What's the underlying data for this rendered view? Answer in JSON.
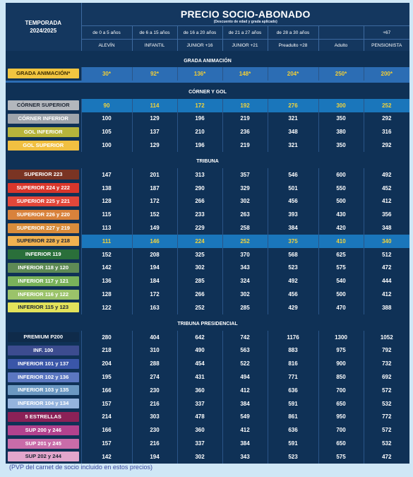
{
  "header": {
    "season_line1": "TEMPORADA",
    "season_line2": "2024/2025",
    "title": "PRECIO SOCIO-ABONADO",
    "subtitle": "(Descuento de edad y grada aplicado)",
    "age_ranges": [
      "de 0 a 5 años",
      "de 6 a 15 años",
      "de 16 a 20 años",
      "de 21 a 27 años",
      "de 28 a 30 años",
      "",
      "+67"
    ],
    "categories": [
      "ALEVÍN",
      "INFANTIL",
      "JUNIOR +16",
      "JUNIOR +21",
      "Preadulto +28",
      "Adulto",
      "PENSIONISTA"
    ]
  },
  "sections": {
    "animacion": "GRADA ANIMACIÓN",
    "corner": "CÓRNER Y GOL",
    "tribuna": "TRIBUNA",
    "presidencial": "TRIBUNA PRESIDENCIAL"
  },
  "rows": {
    "animacion": [
      {
        "label": "GRADA ANIMACIÓN*",
        "color": "#f1c540",
        "text": "#3a2a00",
        "values": [
          "30*",
          "92*",
          "136*",
          "148*",
          "204*",
          "250*",
          "200*"
        ]
      }
    ],
    "corner": [
      {
        "label": "CÓRNER SUPERIOR",
        "color": "#b3b7bd",
        "text": "#1c2533",
        "values": [
          "90",
          "114",
          "172",
          "192",
          "276",
          "300",
          "252"
        ]
      },
      {
        "label": "CÓRNER INFERIOR",
        "color": "#9ea4ab",
        "text": "#ffffff",
        "values": [
          "100",
          "129",
          "196",
          "219",
          "321",
          "350",
          "292"
        ]
      },
      {
        "label": "GOL INFERIOR",
        "color": "#b6b43b",
        "text": "#ffffff",
        "values": [
          "105",
          "137",
          "210",
          "236",
          "348",
          "380",
          "316"
        ]
      },
      {
        "label": "GOL SUPERIOR",
        "color": "#f1c041",
        "text": "#ffffff",
        "values": [
          "100",
          "129",
          "196",
          "219",
          "321",
          "350",
          "292"
        ]
      }
    ],
    "tribuna": [
      {
        "label": "SUPERIOR 223",
        "color": "#7a3423",
        "text": "#ffffff",
        "values": [
          "147",
          "201",
          "313",
          "357",
          "546",
          "600",
          "492"
        ]
      },
      {
        "label": "SUPERIOR 224 y 222",
        "color": "#d9362b",
        "text": "#ffffff",
        "values": [
          "138",
          "187",
          "290",
          "329",
          "501",
          "550",
          "452"
        ]
      },
      {
        "label": "SUPERIOR 225 y 221",
        "color": "#e2473a",
        "text": "#ffffff",
        "values": [
          "128",
          "172",
          "266",
          "302",
          "456",
          "500",
          "412"
        ]
      },
      {
        "label": "SUPERIOR 226 y 220",
        "color": "#d9823b",
        "text": "#ffffff",
        "values": [
          "115",
          "152",
          "233",
          "263",
          "393",
          "430",
          "356"
        ]
      },
      {
        "label": "SUPERIOR 227 y 219",
        "color": "#d98c3b",
        "text": "#ffffff",
        "values": [
          "113",
          "149",
          "229",
          "258",
          "384",
          "420",
          "348"
        ]
      },
      {
        "label": "SUPERIOR 228 y 218",
        "color": "#f1b250",
        "text": "#1c2533",
        "values": [
          "111",
          "146",
          "224",
          "252",
          "375",
          "410",
          "340"
        ]
      },
      {
        "label": "INFERIOR 119",
        "color": "#2a6f3a",
        "text": "#ffffff",
        "values": [
          "152",
          "208",
          "325",
          "370",
          "568",
          "625",
          "512"
        ]
      },
      {
        "label": "INFERIOR 118 y 120",
        "color": "#5e8a55",
        "text": "#ffffff",
        "values": [
          "142",
          "194",
          "302",
          "343",
          "523",
          "575",
          "472"
        ]
      },
      {
        "label": "INFERIOR 117 y 121",
        "color": "#79b25a",
        "text": "#ffffff",
        "values": [
          "136",
          "184",
          "285",
          "324",
          "492",
          "540",
          "444"
        ]
      },
      {
        "label": "INFERIOR 116 y 122",
        "color": "#9bc36a",
        "text": "#ffffff",
        "values": [
          "128",
          "172",
          "266",
          "302",
          "456",
          "500",
          "412"
        ]
      },
      {
        "label": "INFERIOR 115 y 123",
        "color": "#e2e25b",
        "text": "#1c2533",
        "values": [
          "122",
          "163",
          "252",
          "285",
          "429",
          "470",
          "388"
        ]
      }
    ],
    "presidencial": [
      {
        "label": "PREMIUM P200",
        "color": "#0f2b4a",
        "text": "#ffffff",
        "values": [
          "280",
          "404",
          "642",
          "742",
          "1176",
          "1300",
          "1052"
        ]
      },
      {
        "label": "INF. 100",
        "color": "#3c4c8f",
        "text": "#ffffff",
        "values": [
          "218",
          "310",
          "490",
          "563",
          "883",
          "975",
          "792"
        ]
      },
      {
        "label": "INFERIOR 101 y 137",
        "color": "#3a56a8",
        "text": "#ffffff",
        "values": [
          "204",
          "288",
          "454",
          "522",
          "816",
          "900",
          "732"
        ]
      },
      {
        "label": "INFERIOR 102 y 136",
        "color": "#5b77c1",
        "text": "#ffffff",
        "values": [
          "195",
          "274",
          "431",
          "494",
          "771",
          "850",
          "692"
        ]
      },
      {
        "label": "INFERIOR 103 y 135",
        "color": "#6b98c2",
        "text": "#ffffff",
        "values": [
          "166",
          "230",
          "360",
          "412",
          "636",
          "700",
          "572"
        ]
      },
      {
        "label": "INFERIOR 104 y 134",
        "color": "#95b4de",
        "text": "#ffffff",
        "values": [
          "157",
          "216",
          "337",
          "384",
          "591",
          "650",
          "532"
        ]
      },
      {
        "label": "5 ESTRELLAS",
        "color": "#8b2157",
        "text": "#ffffff",
        "values": [
          "214",
          "303",
          "478",
          "549",
          "861",
          "950",
          "772"
        ]
      },
      {
        "label": "SUP 200 y 246",
        "color": "#b2428e",
        "text": "#ffffff",
        "values": [
          "166",
          "230",
          "360",
          "412",
          "636",
          "700",
          "572"
        ]
      },
      {
        "label": "SUP 201 y 245",
        "color": "#c96ca9",
        "text": "#ffffff",
        "values": [
          "157",
          "216",
          "337",
          "384",
          "591",
          "650",
          "532"
        ]
      },
      {
        "label": "SUP 202 y 244",
        "color": "#e3a6cc",
        "text": "#1c2533",
        "values": [
          "142",
          "194",
          "302",
          "343",
          "523",
          "575",
          "472"
        ]
      }
    ]
  },
  "footnote": "(PVP del carnet de socio incluido en estos precios)"
}
